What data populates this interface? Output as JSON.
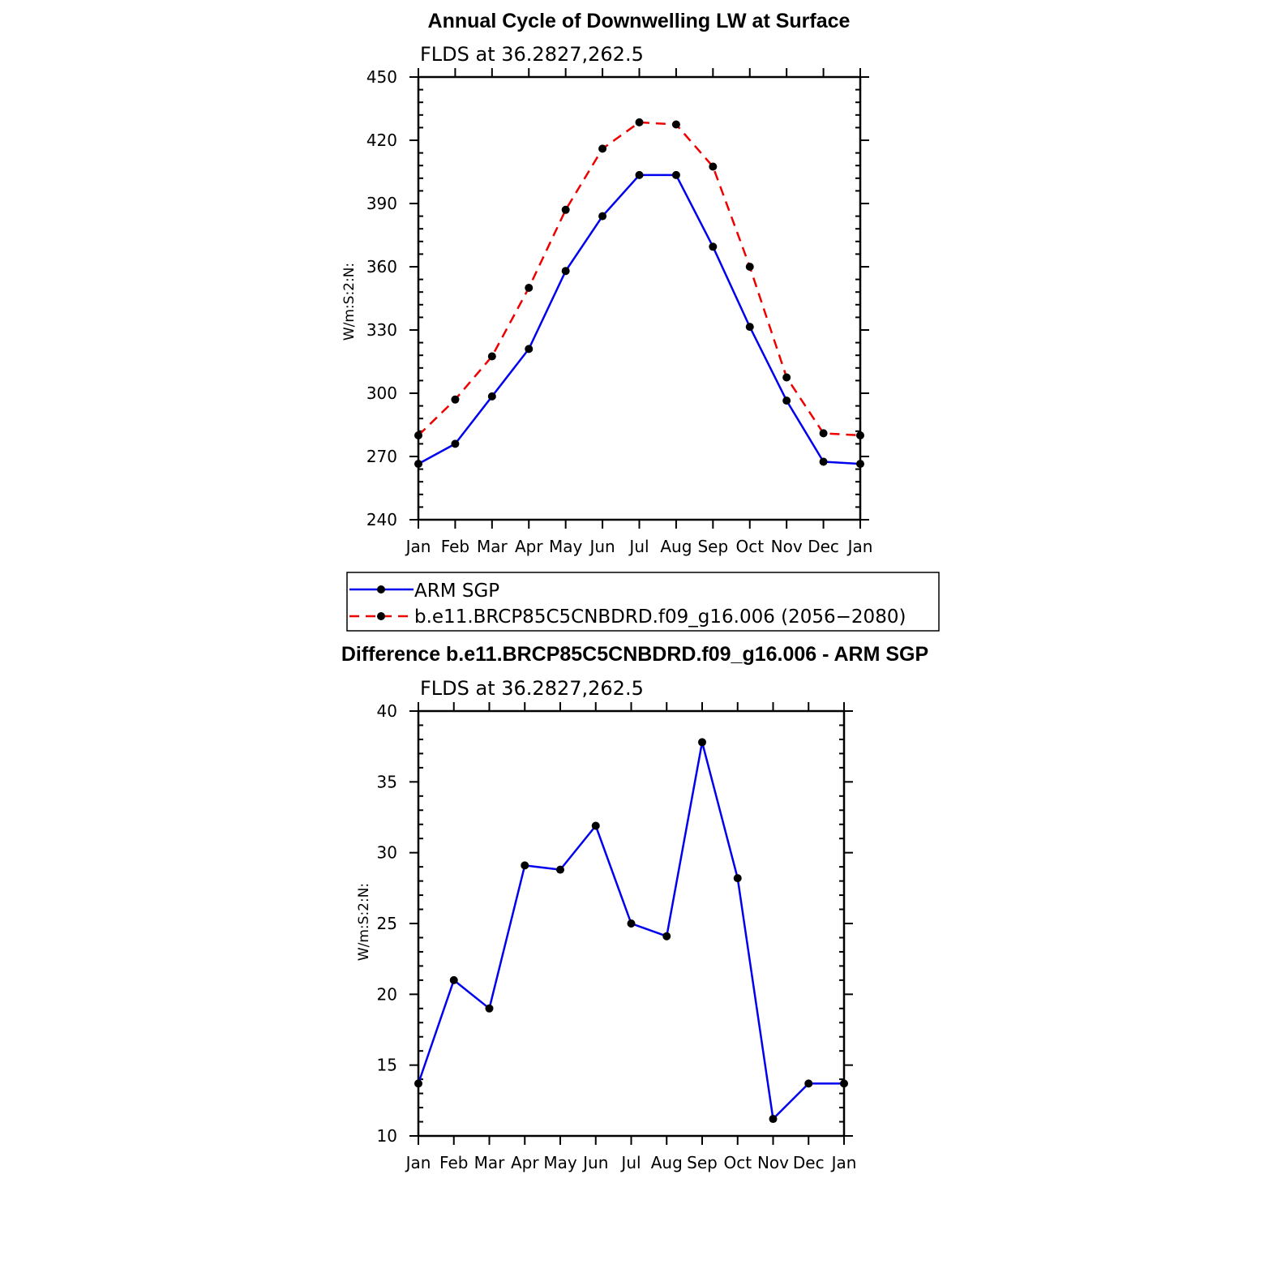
{
  "chart_data": [
    {
      "type": "line",
      "title": "Annual Cycle of Downwelling LW at Surface",
      "subtitle": "FLDS at 36.2827,262.5",
      "ylabel": "W/m:S:2:N:",
      "xlabel": "",
      "categories": [
        "Jan",
        "Feb",
        "Mar",
        "Apr",
        "May",
        "Jun",
        "Jul",
        "Aug",
        "Sep",
        "Oct",
        "Nov",
        "Dec",
        "Jan"
      ],
      "ylim": [
        240,
        450
      ],
      "yticks": [
        240,
        270,
        300,
        330,
        360,
        390,
        420,
        450
      ],
      "series": [
        {
          "name": "ARM SGP",
          "color": "#0000ee",
          "dash": "solid",
          "values": [
            266.5,
            276.0,
            298.5,
            321.0,
            358.0,
            384.0,
            403.5,
            403.5,
            369.5,
            331.5,
            296.5,
            267.5,
            266.5
          ]
        },
        {
          "name": "b.e11.BRCP85C5CNBDRD.f09_g16.006 (2056-2080)",
          "color": "#ee0000",
          "dash": "dashed",
          "values": [
            280.0,
            297.0,
            317.5,
            350.0,
            387.0,
            416.0,
            428.5,
            427.5,
            407.5,
            360.0,
            307.5,
            281.0,
            280.0
          ]
        }
      ],
      "legend": {
        "position": "bottom",
        "entries": [
          "ARM SGP",
          "b.e11.BRCP85C5CNBDRD.f09_g16.006 (2056−2080)"
        ]
      }
    },
    {
      "type": "line",
      "title": "Difference b.e11.BRCP85C5CNBDRD.f09_g16.006 - ARM SGP",
      "subtitle": "FLDS at 36.2827,262.5",
      "ylabel": "W/m:S:2:N:",
      "xlabel": "",
      "categories": [
        "Jan",
        "Feb",
        "Mar",
        "Apr",
        "May",
        "Jun",
        "Jul",
        "Aug",
        "Sep",
        "Oct",
        "Nov",
        "Dec",
        "Jan"
      ],
      "ylim": [
        10,
        40
      ],
      "yticks": [
        10,
        15,
        20,
        25,
        30,
        35,
        40
      ],
      "series": [
        {
          "name": "Difference",
          "color": "#0000ee",
          "dash": "solid",
          "values": [
            13.7,
            21.0,
            19.0,
            29.1,
            28.8,
            31.9,
            25.0,
            24.1,
            37.8,
            28.2,
            11.2,
            13.7,
            13.7
          ]
        }
      ]
    }
  ]
}
